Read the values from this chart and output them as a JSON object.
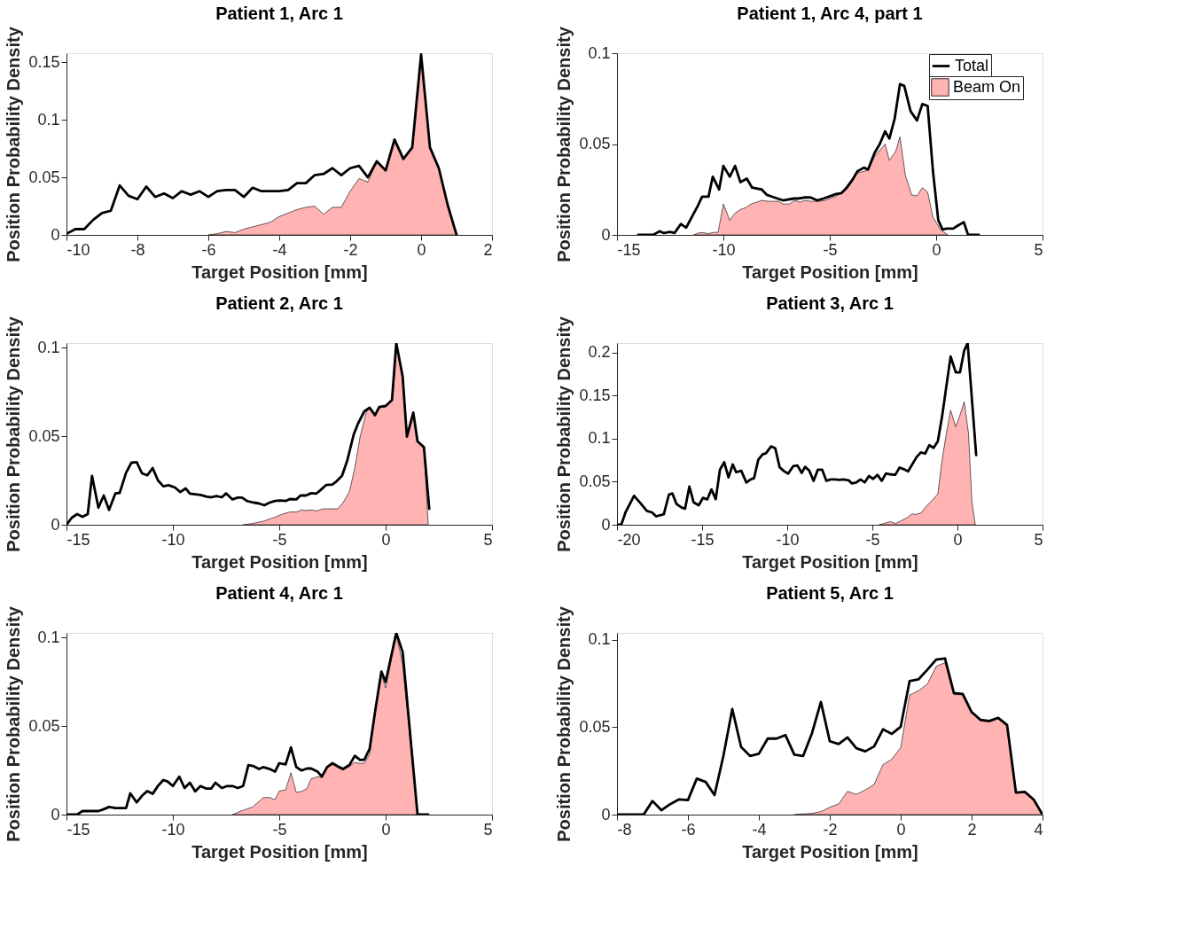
{
  "chart_data": [
    {
      "type": "line",
      "title": "Patient 1, Arc 1",
      "xlabel": "Target Position [mm]",
      "ylabel": "Position Probability Density",
      "xlim": [
        -10,
        2
      ],
      "xticks": [
        -10,
        -8,
        -6,
        -4,
        -2,
        0,
        2
      ],
      "ylim": [
        0,
        0.158
      ],
      "yticks": [
        0,
        0.05,
        0.1,
        0.15
      ],
      "grid": false,
      "legend": false,
      "series": [
        {
          "type": "line",
          "color": "#000000",
          "x": [
            -10,
            -9.75,
            -9.5,
            -9.25,
            -9,
            -8.75,
            -8.5,
            -8.25,
            -8,
            -7.75,
            -7.5,
            -7.25,
            -7,
            -6.75,
            -6.5,
            -6.25,
            -6,
            -5.75,
            -5.5,
            -5.25,
            -5,
            -4.75,
            -4.5,
            -4.25,
            -4,
            -3.75,
            -3.5,
            -3.25,
            -3,
            -2.75,
            -2.5,
            -2.25,
            -2,
            -1.75,
            -1.5,
            -1.25,
            -1,
            -0.75,
            -0.5,
            -0.25,
            0,
            0.25,
            0.5,
            0.75,
            1
          ],
          "values": [
            0.001,
            0.005,
            0.005,
            0.013,
            0.019,
            0.021,
            0.043,
            0.034,
            0.031,
            0.042,
            0.033,
            0.036,
            0.032,
            0.038,
            0.035,
            0.038,
            0.033,
            0.038,
            0.039,
            0.039,
            0.033,
            0.041,
            0.038,
            0.038,
            0.038,
            0.039,
            0.045,
            0.045,
            0.052,
            0.053,
            0.058,
            0.052,
            0.058,
            0.06,
            0.05,
            0.064,
            0.056,
            0.083,
            0.066,
            0.076,
            0.157,
            0.076,
            0.058,
            0.026,
            0
          ]
        },
        {
          "type": "area",
          "color": "#ffb3b3",
          "x": [
            -6,
            -5.75,
            -5.5,
            -5.25,
            -5,
            -4.75,
            -4.5,
            -4.25,
            -4,
            -3.75,
            -3.5,
            -3.25,
            -3,
            -2.75,
            -2.5,
            -2.25,
            -2,
            -1.75,
            -1.5,
            -1.25,
            -1,
            -0.75,
            -0.5,
            -0.25,
            0,
            0.25,
            0.5,
            0.75,
            1
          ],
          "values": [
            0,
            0.001,
            0.003,
            0.002,
            0.005,
            0.007,
            0.009,
            0.011,
            0.016,
            0.019,
            0.022,
            0.024,
            0.025,
            0.018,
            0.024,
            0.024,
            0.038,
            0.049,
            0.046,
            0.064,
            0.056,
            0.083,
            0.066,
            0.076,
            0.157,
            0.076,
            0.058,
            0.026,
            0
          ]
        }
      ]
    },
    {
      "type": "line",
      "title": "Patient 1, Arc 4, part 1",
      "xlabel": "Target Position [mm]",
      "ylabel": "Position Probability Density",
      "xlim": [
        -15,
        5
      ],
      "xticks": [
        -15,
        -10,
        -5,
        0,
        5
      ],
      "ylim": [
        0,
        0.1
      ],
      "yticks": [
        0,
        0.05,
        0.1
      ],
      "grid": false,
      "legend": "top right",
      "series": [
        {
          "type": "line",
          "name": "Total",
          "color": "#000000",
          "x": [
            -14,
            -13.3,
            -13,
            -12.8,
            -12.5,
            -12.3,
            -12,
            -11.75,
            -11.2,
            -11,
            -10.7,
            -10.5,
            -10.2,
            -10,
            -9.7,
            -9.45,
            -9.2,
            -8.9,
            -8.65,
            -8.2,
            -7.95,
            -7.7,
            -7.2,
            -6.7,
            -6.5,
            -6.2,
            -5.9,
            -5.6,
            -5.3,
            -4.7,
            -4.45,
            -4.2,
            -3.95,
            -3.7,
            -3.4,
            -3.2,
            -2.9,
            -2.65,
            -2.4,
            -2.2,
            -1.95,
            -1.7,
            -1.5,
            -1.2,
            -0.9,
            -0.65,
            -0.4,
            -0.15,
            0.1,
            0.3,
            0.5,
            0.8,
            1,
            1.3,
            1.5,
            2
          ],
          "values": [
            0,
            0,
            0.002,
            0.001,
            0.0016,
            0.001,
            0.006,
            0.004,
            0.016,
            0.021,
            0.021,
            0.032,
            0.025,
            0.038,
            0.032,
            0.038,
            0.029,
            0.031,
            0.026,
            0.025,
            0.022,
            0.021,
            0.019,
            0.02,
            0.02,
            0.0206,
            0.0206,
            0.019,
            0.02,
            0.0225,
            0.023,
            0.026,
            0.03,
            0.035,
            0.037,
            0.036,
            0.045,
            0.05,
            0.057,
            0.053,
            0.064,
            0.083,
            0.082,
            0.068,
            0.063,
            0.072,
            0.071,
            0.035,
            0.008,
            0.003,
            0.0035,
            0.0035,
            0.005,
            0.007,
            0,
            0
          ]
        },
        {
          "type": "area",
          "name": "Beam On",
          "color": "#ffb3b3",
          "x": [
            -11.4,
            -11.2,
            -11,
            -10.7,
            -10.45,
            -10.25,
            -10,
            -9.7,
            -9.45,
            -9.2,
            -8.95,
            -8.7,
            -8.45,
            -8.2,
            -7.9,
            -7.4,
            -7.2,
            -6.9,
            -6.65,
            -6.4,
            -6.2,
            -5.9,
            -5.5,
            -5.2,
            -4.9,
            -4.75,
            -4.45,
            -3.95,
            -3.7,
            -3.4,
            -3.2,
            -2.9,
            -2.4,
            -2.2,
            -1.9,
            -1.7,
            -1.45,
            -1.15,
            -0.9,
            -0.65,
            -0.4,
            -0.15,
            0.2,
            0.55
          ],
          "values": [
            0,
            0.001,
            0.0013,
            0.0007,
            0.0014,
            0.0014,
            0.017,
            0.008,
            0.012,
            0.014,
            0.015,
            0.017,
            0.018,
            0.019,
            0.0185,
            0.0185,
            0.017,
            0.017,
            0.019,
            0.018,
            0.019,
            0.0185,
            0.0185,
            0.019,
            0.0206,
            0.021,
            0.023,
            0.031,
            0.034,
            0.035,
            0.0355,
            0.043,
            0.05,
            0.041,
            0.046,
            0.054,
            0.033,
            0.022,
            0.0215,
            0.026,
            0.0235,
            0.0097,
            0.003,
            0
          ]
        }
      ]
    },
    {
      "type": "line",
      "title": "Patient 2, Arc 1",
      "xlabel": "Target Position [mm]",
      "ylabel": "Position Probability Density",
      "xlim": [
        -15,
        5
      ],
      "xticks": [
        -15,
        -10,
        -5,
        0,
        5
      ],
      "ylim": [
        0,
        0.1025
      ],
      "yticks": [
        0,
        0.05,
        0.1
      ],
      "grid": false,
      "legend": false,
      "series": [
        {
          "type": "line",
          "color": "#000000",
          "x": [
            -15,
            -14.75,
            -14.5,
            -14.25,
            -14,
            -13.8,
            -13.5,
            -13.25,
            -13,
            -12.7,
            -12.5,
            -12.2,
            -11.95,
            -11.7,
            -11.45,
            -11.2,
            -10.95,
            -10.7,
            -10.45,
            -10.2,
            -9.9,
            -9.65,
            -9.4,
            -9.2,
            -8.7,
            -8.4,
            -8.2,
            -7.95,
            -7.7,
            -7.5,
            -7.2,
            -6.95,
            -6.75,
            -6.5,
            -6.2,
            -5.95,
            -5.7,
            -5.45,
            -5.2,
            -4.95,
            -4.7,
            -4.5,
            -4.2,
            -4,
            -3.75,
            -3.5,
            -3.25,
            -3,
            -2.8,
            -2.5,
            -2.3,
            -2.05,
            -1.8,
            -1.5,
            -1.3,
            -1,
            -0.75,
            -0.5,
            -0.3,
            0,
            0.3,
            0.5,
            0.8,
            1,
            1.3,
            1.5,
            1.8,
            2.05
          ],
          "values": [
            0,
            0.004,
            0.006,
            0.0045,
            0.006,
            0.0276,
            0.0096,
            0.0165,
            0.0084,
            0.0177,
            0.018,
            0.0293,
            0.035,
            0.0353,
            0.029,
            0.0279,
            0.032,
            0.025,
            0.0217,
            0.0223,
            0.021,
            0.0184,
            0.0205,
            0.0176,
            0.0168,
            0.0158,
            0.0155,
            0.0162,
            0.0155,
            0.0177,
            0.0143,
            0.0153,
            0.0153,
            0.0133,
            0.0125,
            0.012,
            0.011,
            0.0125,
            0.0134,
            0.0137,
            0.0134,
            0.0145,
            0.0143,
            0.0165,
            0.0165,
            0.0178,
            0.0176,
            0.0202,
            0.0224,
            0.0227,
            0.0246,
            0.0276,
            0.0364,
            0.0509,
            0.057,
            0.064,
            0.066,
            0.0618,
            0.0664,
            0.067,
            0.0704,
            0.1025,
            0.0836,
            0.0497,
            0.0633,
            0.047,
            0.0438,
            0.009
          ]
        },
        {
          "type": "area",
          "color": "#ffb3b3",
          "x": [
            -6.7,
            -6.3,
            -5.75,
            -5.2,
            -4.8,
            -4.5,
            -4.2,
            -3.95,
            -3.75,
            -3.5,
            -3.25,
            -2.95,
            -2.25,
            -2,
            -1.7,
            -1.45,
            -1.2,
            -0.9,
            -0.75,
            -0.5,
            -0.3,
            0,
            0.3,
            0.5,
            0.8,
            1,
            1.3,
            1.5,
            1.8,
            2.0
          ],
          "values": [
            0,
            0.0006,
            0.002,
            0.0043,
            0.0062,
            0.0072,
            0.0072,
            0.0084,
            0.008,
            0.0084,
            0.0078,
            0.009,
            0.009,
            0.0125,
            0.0187,
            0.032,
            0.0497,
            0.0637,
            0.066,
            0.0618,
            0.0664,
            0.067,
            0.0704,
            0.1025,
            0.0836,
            0.0497,
            0.0633,
            0.047,
            0.0438,
            0
          ]
        }
      ]
    },
    {
      "type": "line",
      "title": "Patient 3, Arc 1",
      "xlabel": "Target Position [mm]",
      "ylabel": "Position Probability Density",
      "xlim": [
        -20,
        5
      ],
      "xticks": [
        -20,
        -15,
        -10,
        -5,
        0,
        5
      ],
      "ylim": [
        0,
        0.211
      ],
      "yticks": [
        0,
        0.05,
        0.1,
        0.15,
        0.2
      ],
      "grid": false,
      "legend": false,
      "series": [
        {
          "type": "line",
          "color": "#000000",
          "x": [
            -20,
            -19.75,
            -19.5,
            -19,
            -18.6,
            -18.25,
            -17.95,
            -17.7,
            -17.25,
            -16.95,
            -16.75,
            -16.5,
            -16.2,
            -16,
            -15.75,
            -15.5,
            -15.2,
            -14.95,
            -14.7,
            -14.45,
            -14.2,
            -13.95,
            -13.7,
            -13.45,
            -13.2,
            -13,
            -12.7,
            -12.4,
            -12.15,
            -11.95,
            -11.7,
            -11.45,
            -11.25,
            -10.95,
            -10.7,
            -10.45,
            -10.2,
            -9.95,
            -9.65,
            -9.4,
            -9.15,
            -8.95,
            -8.7,
            -8.45,
            -8.2,
            -7.95,
            -7.7,
            -7.45,
            -7.2,
            -6.95,
            -6.7,
            -6.4,
            -6.2,
            -5.95,
            -5.7,
            -5.45,
            -5.2,
            -4.95,
            -4.7,
            -4.45,
            -4.2,
            -3.9,
            -3.65,
            -3.4,
            -3.15,
            -2.9,
            -2.65,
            -2.4,
            -2.15,
            -1.9,
            -1.65,
            -1.4,
            -1.15,
            -0.9,
            -0.65,
            -0.4,
            -0.1,
            0.15,
            0.4,
            0.6,
            1.1
          ],
          "values": [
            0,
            0,
            0.0144,
            0.0336,
            0.0245,
            0.016,
            0.0144,
            0.0098,
            0.0122,
            0.035,
            0.0364,
            0.024,
            0.0199,
            0.0187,
            0.0443,
            0.026,
            0.0226,
            0.0312,
            0.0294,
            0.041,
            0.0297,
            0.064,
            0.0725,
            0.055,
            0.07,
            0.061,
            0.0627,
            0.049,
            0.0526,
            0.054,
            0.0755,
            0.0817,
            0.083,
            0.091,
            0.0887,
            0.067,
            0.0624,
            0.0593,
            0.068,
            0.0688,
            0.0602,
            0.0673,
            0.0627,
            0.051,
            0.064,
            0.064,
            0.051,
            0.0526,
            0.0526,
            0.052,
            0.0526,
            0.0517,
            0.048,
            0.049,
            0.0526,
            0.0492,
            0.0566,
            0.0532,
            0.058,
            0.051,
            0.0596,
            0.0584,
            0.058,
            0.0664,
            0.0645,
            0.062,
            0.0703,
            0.0786,
            0.084,
            0.0826,
            0.0924,
            0.0893,
            0.097,
            0.126,
            0.161,
            0.1954,
            0.177,
            0.177,
            0.2024,
            0.211,
            0.081
          ]
        },
        {
          "type": "area",
          "color": "#ffb3b3",
          "x": [
            -4.6,
            -4.3,
            -3.95,
            -3.65,
            -3.4,
            -2.95,
            -2.65,
            -2.5,
            -2.15,
            -1.85,
            -1.5,
            -1.15,
            -0.9,
            -0.65,
            -0.4,
            -0.1,
            0.15,
            0.4,
            0.65,
            0.85,
            1.05
          ],
          "values": [
            0,
            0.0015,
            0.0037,
            0.0015,
            0.0037,
            0.0083,
            0.0128,
            0.0119,
            0.0135,
            0.021,
            0.028,
            0.0358,
            0.0755,
            0.106,
            0.133,
            0.1138,
            0.1275,
            0.143,
            0.106,
            0.0266,
            0
          ]
        }
      ]
    },
    {
      "type": "line",
      "title": "Patient 4, Arc 1",
      "xlabel": "Target Position [mm]",
      "ylabel": "Position Probability Density",
      "xlim": [
        -15,
        5
      ],
      "xticks": [
        -15,
        -10,
        -5,
        0,
        5
      ],
      "ylim": [
        0,
        0.1025
      ],
      "yticks": [
        0,
        0.05,
        0.1
      ],
      "grid": false,
      "legend": false,
      "series": [
        {
          "type": "line",
          "color": "#000000",
          "x": [
            -15,
            -14.5,
            -14.25,
            -13.5,
            -13.3,
            -13,
            -12.7,
            -12.2,
            -12,
            -11.7,
            -11.45,
            -11.2,
            -10.95,
            -10.7,
            -10.45,
            -10.25,
            -10,
            -9.7,
            -9.45,
            -9.2,
            -8.95,
            -8.7,
            -8.45,
            -8.2,
            -8,
            -7.7,
            -7.45,
            -7.2,
            -6.95,
            -6.7,
            -6.45,
            -6.2,
            -5.95,
            -5.75,
            -5.45,
            -5.2,
            -5,
            -4.7,
            -4.45,
            -4.2,
            -3.95,
            -3.7,
            -3.5,
            -3.2,
            -3,
            -2.75,
            -2.5,
            -2.25,
            -2,
            -1.7,
            -1.45,
            -1.2,
            -1,
            -0.75,
            -0.5,
            -0.2,
            0,
            0.5,
            0.8,
            1.5,
            2
          ],
          "values": [
            0,
            0,
            0.002,
            0.002,
            0.0028,
            0.0043,
            0.0037,
            0.0037,
            0.012,
            0.0069,
            0.0106,
            0.0133,
            0.0117,
            0.0162,
            0.0195,
            0.0187,
            0.0161,
            0.0214,
            0.015,
            0.018,
            0.0131,
            0.0161,
            0.0147,
            0.0147,
            0.018,
            0.015,
            0.0161,
            0.0161,
            0.015,
            0.0161,
            0.0279,
            0.0273,
            0.0257,
            0.0268,
            0.0257,
            0.0242,
            0.029,
            0.0283,
            0.0379,
            0.0268,
            0.0249,
            0.026,
            0.026,
            0.0243,
            0.0214,
            0.0268,
            0.029,
            0.0273,
            0.0258,
            0.028,
            0.0332,
            0.0308,
            0.031,
            0.0372,
            0.0578,
            0.0807,
            0.0748,
            0.1025,
            0.0917,
            0,
            0
          ]
        },
        {
          "type": "area",
          "color": "#ffb3b3",
          "x": [
            -7.2,
            -6.8,
            -6.25,
            -5.75,
            -5.45,
            -5.2,
            -5,
            -4.7,
            -4.45,
            -4.2,
            -3.95,
            -3.7,
            -3.5,
            -3.2,
            -3,
            -2.75,
            -2.5,
            -2.25,
            -2,
            -1.7,
            -1.45,
            -1.2,
            -1,
            -0.75,
            -0.5,
            -0.2,
            0,
            0.5,
            0.8,
            1.5
          ],
          "values": [
            0,
            0.002,
            0.0043,
            0.0096,
            0.0096,
            0.0084,
            0.0133,
            0.0139,
            0.0236,
            0.0125,
            0.0131,
            0.0147,
            0.0202,
            0.0214,
            0.021,
            0.0265,
            0.0283,
            0.0265,
            0.025,
            0.0272,
            0.0295,
            0.0288,
            0.029,
            0.0342,
            0.057,
            0.079,
            0.0714,
            0.102,
            0.085,
            0
          ]
        }
      ]
    },
    {
      "type": "line",
      "title": "Patient 5, Arc 1",
      "xlabel": "Target Position [mm]",
      "ylabel": "Position Probability Density",
      "xlim": [
        -8,
        4
      ],
      "xticks": [
        -8,
        -6,
        -4,
        -2,
        0,
        2,
        4
      ],
      "ylim": [
        0,
        0.104
      ],
      "yticks": [
        0,
        0.05,
        0.1
      ],
      "grid": false,
      "legend": false,
      "series": [
        {
          "type": "line",
          "color": "#000000",
          "x": [
            -8,
            -7.25,
            -7,
            -6.75,
            -6.5,
            -6.25,
            -6,
            -5.75,
            -5.5,
            -5.25,
            -5,
            -4.75,
            -4.5,
            -4.25,
            -4,
            -3.75,
            -3.5,
            -3.25,
            -3,
            -2.75,
            -2.5,
            -2.25,
            -2,
            -1.75,
            -1.5,
            -1.25,
            -1,
            -0.75,
            -0.5,
            -0.25,
            0,
            0.25,
            0.5,
            0.75,
            1,
            1.25,
            1.5,
            1.75,
            2,
            2.25,
            2.5,
            2.75,
            3,
            3.25,
            3.5,
            3.75,
            4
          ],
          "values": [
            0,
            0,
            0.0078,
            0.0025,
            0.006,
            0.0087,
            0.0083,
            0.0206,
            0.0187,
            0.0112,
            0.0336,
            0.0604,
            0.0387,
            0.0336,
            0.0348,
            0.0435,
            0.0435,
            0.0455,
            0.0343,
            0.0336,
            0.0467,
            0.0645,
            0.042,
            0.0404,
            0.0442,
            0.038,
            0.0362,
            0.039,
            0.0488,
            0.0462,
            0.0503,
            0.0764,
            0.0774,
            0.0829,
            0.0887,
            0.0894,
            0.0696,
            0.0691,
            0.0587,
            0.0542,
            0.0536,
            0.0554,
            0.0513,
            0.0126,
            0.013,
            0.0086,
            0
          ]
        },
        {
          "type": "area",
          "color": "#ffb3b3",
          "x": [
            -3,
            -2.75,
            -2.5,
            -2.25,
            -2,
            -1.75,
            -1.5,
            -1.25,
            -1,
            -0.75,
            -0.5,
            -0.25,
            0,
            0.25,
            0.5,
            0.75,
            1,
            1.25,
            1.5,
            1.75,
            2,
            2.25,
            2.5,
            2.75,
            3,
            3.25,
            3.5,
            3.75,
            4
          ],
          "values": [
            0,
            0.0004,
            0.0007,
            0.0017,
            0.0042,
            0.0061,
            0.0133,
            0.0116,
            0.0141,
            0.0172,
            0.0286,
            0.0317,
            0.0384,
            0.0684,
            0.0709,
            0.0746,
            0.0848,
            0.087,
            0.0687,
            0.0686,
            0.0582,
            0.0537,
            0.0531,
            0.0549,
            0.0508,
            0.0122,
            0.0126,
            0.0082,
            0
          ]
        }
      ]
    }
  ]
}
